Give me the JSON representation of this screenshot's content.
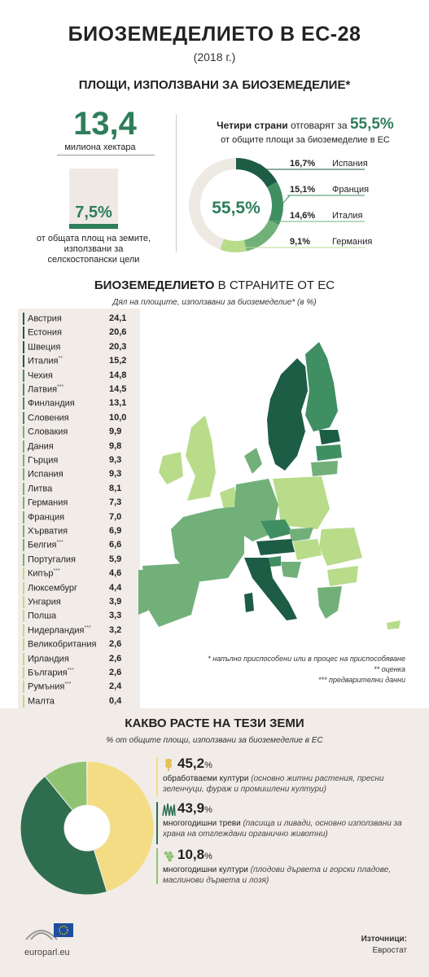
{
  "header": {
    "title": "БИОЗЕМЕДЕЛИЕТО В ЕС-28",
    "year": "(2018 г.)",
    "areas_title": "ПЛОЩИ, ИЗПОЛЗВАНИ ЗА БИОЗЕМЕДЕЛИЕ*"
  },
  "stats": {
    "total_value": "13,4",
    "total_unit": "милиона хектара",
    "share_value": "7,5%",
    "share_fraction": 0.075,
    "share_text": "от общата площ на земите, използвани за селскостопански цели"
  },
  "four_countries": {
    "title_bold": "Четири страни",
    "title_rest": "отговарят за",
    "title_value": "55,5%",
    "subtitle": "от общите площи за биоземеделие в ЕС",
    "donut_center": "55,5%",
    "items": [
      {
        "value": "16,7%",
        "country": "Испания",
        "num": 16.7,
        "color": "#1d5c45"
      },
      {
        "value": "15,1%",
        "country": "Франция",
        "num": 15.1,
        "color": "#3f8f63"
      },
      {
        "value": "14,6%",
        "country": "Италия",
        "num": 14.6,
        "color": "#72b07a"
      },
      {
        "value": "9,1%",
        "country": "Германия",
        "num": 9.1,
        "color": "#b8dc8a"
      }
    ],
    "rest_color": "#efe9e4"
  },
  "eu_section": {
    "title_bold": "БИОЗЕМЕДЕЛИЕТО",
    "title_rest": "В СТРАНИТЕ ОТ ЕС",
    "subtitle": "Дял на площите, използвани за биоземеделие* (в %)",
    "countries": [
      {
        "name": "Австрия",
        "mark": "",
        "value": "24,1",
        "color": "#1d5c45"
      },
      {
        "name": "Естония",
        "mark": "",
        "value": "20,6",
        "color": "#1d5c45"
      },
      {
        "name": "Швеция",
        "mark": "",
        "value": "20,3",
        "color": "#1d5c45"
      },
      {
        "name": "Италия",
        "mark": "**",
        "value": "15,2",
        "color": "#1d5c45"
      },
      {
        "name": "Чехия",
        "mark": "",
        "value": "14,8",
        "color": "#3f8f63"
      },
      {
        "name": "Латвия",
        "mark": "***",
        "value": "14,5",
        "color": "#3f8f63"
      },
      {
        "name": "Финландия",
        "mark": "",
        "value": "13,1",
        "color": "#3f8f63"
      },
      {
        "name": "Словения",
        "mark": "",
        "value": "10,0",
        "color": "#3f8f63"
      },
      {
        "name": "Словакия",
        "mark": "",
        "value": "9,9",
        "color": "#72b07a"
      },
      {
        "name": "Дания",
        "mark": "",
        "value": "9,8",
        "color": "#72b07a"
      },
      {
        "name": "Гърция",
        "mark": "",
        "value": "9,3",
        "color": "#72b07a"
      },
      {
        "name": "Испания",
        "mark": "",
        "value": "9,3",
        "color": "#72b07a"
      },
      {
        "name": "Литва",
        "mark": "",
        "value": "8,1",
        "color": "#72b07a"
      },
      {
        "name": "Германия",
        "mark": "",
        "value": "7,3",
        "color": "#72b07a"
      },
      {
        "name": "Франция",
        "mark": "",
        "value": "7,0",
        "color": "#72b07a"
      },
      {
        "name": "Хърватия",
        "mark": "",
        "value": "6,9",
        "color": "#72b07a"
      },
      {
        "name": "Белгия",
        "mark": "***",
        "value": "6,6",
        "color": "#72b07a"
      },
      {
        "name": "Португалия",
        "mark": "",
        "value": "5,9",
        "color": "#72b07a"
      },
      {
        "name": "Кипър",
        "mark": "***",
        "value": "4,6",
        "color": "#b8dc8a"
      },
      {
        "name": "Люксембург",
        "mark": "",
        "value": "4,4",
        "color": "#b8dc8a"
      },
      {
        "name": "Унгария",
        "mark": "",
        "value": "3,9",
        "color": "#b8dc8a"
      },
      {
        "name": "Полша",
        "mark": "",
        "value": "3,3",
        "color": "#b8dc8a"
      },
      {
        "name": "Нидерландия",
        "mark": "***",
        "value": "3,2",
        "color": "#b8dc8a"
      },
      {
        "name": "Великобритания",
        "mark": "",
        "value": "2,6",
        "color": "#b8dc8a"
      },
      {
        "name": "Ирландия",
        "mark": "",
        "value": "2,6",
        "color": "#b8dc8a"
      },
      {
        "name": "България",
        "mark": "***",
        "value": "2,6",
        "color": "#b8dc8a"
      },
      {
        "name": "Румъния",
        "mark": "***",
        "value": "2,4",
        "color": "#b8dc8a"
      },
      {
        "name": "Малта",
        "mark": "",
        "value": "0,4",
        "color": "#b8dc8a"
      }
    ],
    "notes": [
      "* напълно приспособени или в процес на приспособяване",
      "** оценка",
      "*** предварителни данни"
    ]
  },
  "growing": {
    "title": "КАКВО РАСТЕ НА ТЕЗИ ЗЕМИ",
    "subtitle": "% от общите площи, използвани за биоземеделие в ЕС",
    "items": [
      {
        "value": "45,2",
        "unit": "%",
        "num": 45.2,
        "name": "обработваеми култури",
        "desc": "(основно житни растения, пресни зеленчуци, фураж и промишлени култури)",
        "color": "#f4dc84",
        "icon": "wheat-icon"
      },
      {
        "value": "43,9",
        "unit": "%",
        "num": 43.9,
        "name": "многогодишни треви",
        "desc": "(пасища и ливади, основно използвани за храна на отглеждани органично животни)",
        "color": "#2e6e4e",
        "icon": "grass-icon"
      },
      {
        "value": "10,8",
        "unit": "%",
        "num": 10.8,
        "name": "многогодишни култури",
        "desc": "(плодови дървета и горски пладове, маслинови дървета и лозя)",
        "color": "#8fc372",
        "icon": "grapes-icon"
      }
    ]
  },
  "footer": {
    "logo_text": "europarl.eu",
    "source_label": "Източници:",
    "source_value": "Евростат"
  }
}
